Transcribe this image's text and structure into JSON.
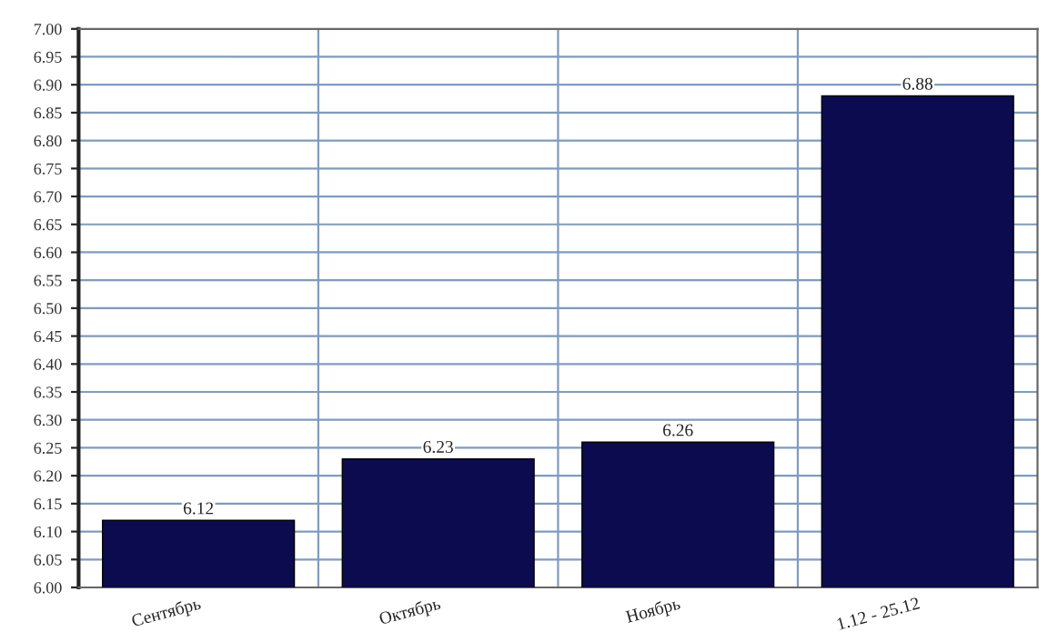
{
  "chart_data": {
    "type": "bar",
    "categories": [
      "Сентябрь",
      "Октябрь",
      "Ноябрь",
      "1.12 - 25.12"
    ],
    "values": [
      6.12,
      6.23,
      6.26,
      6.88
    ],
    "color": "#0d0b4f",
    "ylim": [
      6.0,
      7.0
    ],
    "yticks": [
      {
        "value": 6.0,
        "label": "6.00"
      },
      {
        "value": 6.05,
        "label": "6.05"
      },
      {
        "value": 6.1,
        "label": "6.10"
      },
      {
        "value": 6.15,
        "label": "6.15"
      },
      {
        "value": 6.2,
        "label": "6.20"
      },
      {
        "value": 6.25,
        "label": "6.25"
      },
      {
        "value": 6.3,
        "label": "6.30"
      },
      {
        "value": 6.35,
        "label": "6.35"
      },
      {
        "value": 6.4,
        "label": "6.40"
      },
      {
        "value": 6.45,
        "label": "6.45"
      },
      {
        "value": 6.5,
        "label": "6.50"
      },
      {
        "value": 6.55,
        "label": "6.55"
      },
      {
        "value": 6.6,
        "label": "6.60"
      },
      {
        "value": 6.65,
        "label": "6.65"
      },
      {
        "value": 6.7,
        "label": "6.70"
      },
      {
        "value": 6.75,
        "label": "6.75"
      },
      {
        "value": 6.8,
        "label": "6.80"
      },
      {
        "value": 6.85,
        "label": "6.85"
      },
      {
        "value": 6.9,
        "label": "6.90"
      },
      {
        "value": 6.95,
        "label": "6.95"
      },
      {
        "value": 7.0,
        "label": "7.00"
      }
    ],
    "grid": true,
    "data_labels": true,
    "legend": false
  }
}
